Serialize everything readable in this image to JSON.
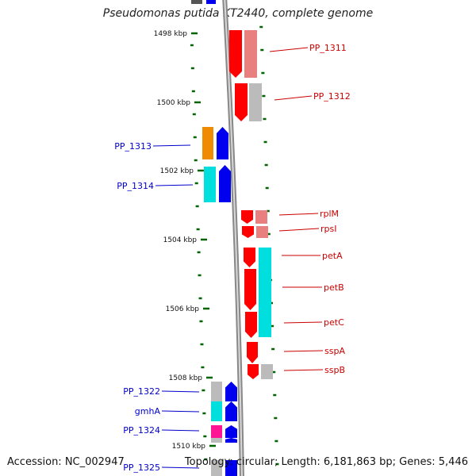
{
  "title": "Pseudomonas putida KT2440, complete genome",
  "accession": "Accession: NC_002947",
  "topology": "Topology: circular; Length: 6,181,863 bp; Genes: 5,446",
  "colors": {
    "backbone": "#888888",
    "tick": "#006400",
    "forward_label": "#cc0000",
    "reverse_label": "#0000cc",
    "red": "#ff0000",
    "light_red": "#e88080",
    "gray": "#bbbbbb",
    "orange": "#f08a00",
    "blue": "#0000ee",
    "cyan": "#00dede",
    "magenta": "#ff1493"
  },
  "kbp_labels": [
    {
      "text": "1498 kbp"
    },
    {
      "text": "1500 kbp"
    },
    {
      "text": "1502 kbp"
    },
    {
      "text": "1504 kbp"
    },
    {
      "text": "1506 kbp"
    },
    {
      "text": "1508 kbp"
    },
    {
      "text": "1510 kbp"
    }
  ],
  "forward_genes": [
    {
      "label": "PP_1311"
    },
    {
      "label": "PP_1312"
    },
    {
      "label": "rplM"
    },
    {
      "label": "rpsI"
    },
    {
      "label": "petA"
    },
    {
      "label": "petB"
    },
    {
      "label": "petC"
    },
    {
      "label": "sspA"
    },
    {
      "label": "sspB"
    }
  ],
  "reverse_genes": [
    {
      "label": "PP_1313"
    },
    {
      "label": "PP_1314"
    },
    {
      "label": "PP_1322"
    },
    {
      "label": "gmhA"
    },
    {
      "label": "PP_1324"
    },
    {
      "label": "PP_1325"
    }
  ]
}
